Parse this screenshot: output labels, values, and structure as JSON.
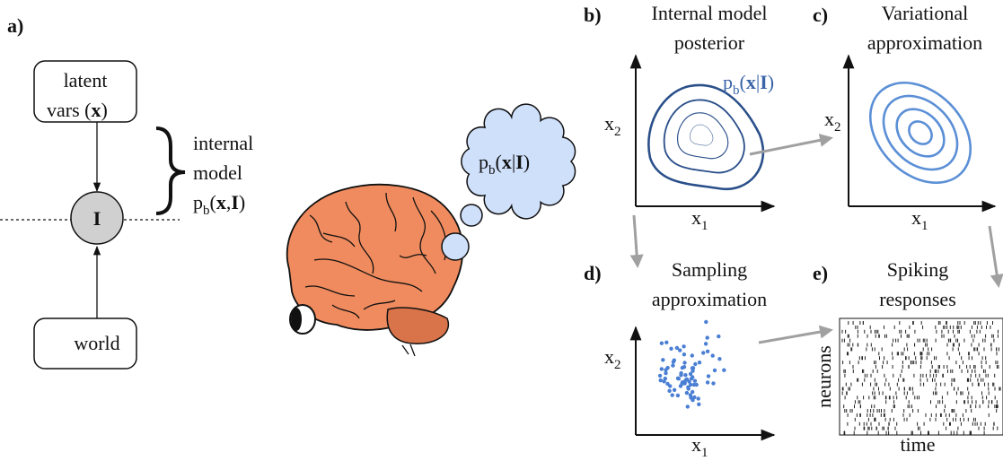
{
  "panel_a": {
    "label": "a)",
    "latent_line1": "latent",
    "latent_line2": [
      "vars (",
      "x",
      ")"
    ],
    "node": "I",
    "world": "world",
    "internal": [
      "internal",
      "model"
    ],
    "joint": [
      "p",
      "b",
      "(",
      "x",
      ",",
      "I",
      ")"
    ]
  },
  "thought": [
    "p",
    "b",
    "(",
    "x",
    "|",
    "I",
    ")"
  ],
  "panel_b": {
    "label": "b)",
    "title": [
      "Internal model",
      "posterior"
    ],
    "density": [
      "p",
      "b",
      "(",
      "x",
      "|",
      "I",
      ")"
    ],
    "x1": [
      "x",
      "1"
    ],
    "x2": [
      "x",
      "2"
    ]
  },
  "panel_c": {
    "label": "c)",
    "title": [
      "Variational",
      "approximation"
    ],
    "x1": [
      "x",
      "1"
    ],
    "x2": [
      "x",
      "2"
    ]
  },
  "panel_d": {
    "label": "d)",
    "title": [
      "Sampling",
      "approximation"
    ],
    "x1": [
      "x",
      "1"
    ],
    "x2": [
      "x",
      "2"
    ]
  },
  "panel_e": {
    "label": "e)",
    "title": [
      "Spiking",
      "responses"
    ],
    "ylabel": "neurons",
    "xlabel": "time"
  }
}
